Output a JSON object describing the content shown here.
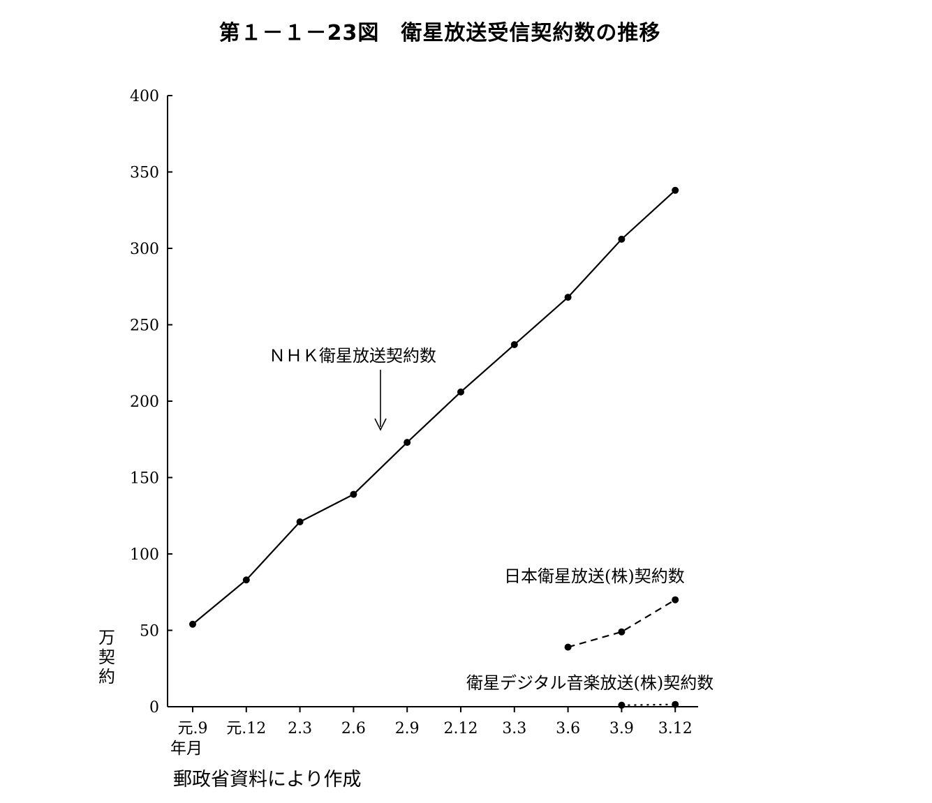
{
  "title": "第１－１－23図　衛星放送受信契約数の推移",
  "source": "郵政省資料により作成",
  "chart_data": {
    "type": "line",
    "title": "第１－１－23図　衛星放送受信契約数の推移",
    "ylabel": "万契約",
    "xlabel": "年月",
    "ylim": [
      0,
      400
    ],
    "yticks": [
      0,
      50,
      100,
      150,
      200,
      250,
      300,
      350,
      400
    ],
    "categories": [
      "元.9",
      "元.12",
      "2.3",
      "2.6",
      "2.9",
      "2.12",
      "3.3",
      "3.6",
      "3.9",
      "3.12"
    ],
    "series": [
      {
        "name": "ＮＨＫ衛星放送契約数",
        "style": "solid",
        "values": [
          54,
          83,
          121,
          139,
          173,
          206,
          237,
          268,
          306,
          338
        ]
      },
      {
        "name": "日本衛星放送(株)契約数",
        "style": "dashed",
        "values": [
          null,
          null,
          null,
          null,
          null,
          null,
          null,
          39,
          49,
          70
        ]
      },
      {
        "name": "衛星デジタル音楽放送(株)契約数",
        "style": "dotted",
        "values": [
          null,
          null,
          null,
          null,
          null,
          null,
          null,
          null,
          1,
          1.5
        ]
      }
    ],
    "grid": false,
    "legend": "inline labels"
  }
}
